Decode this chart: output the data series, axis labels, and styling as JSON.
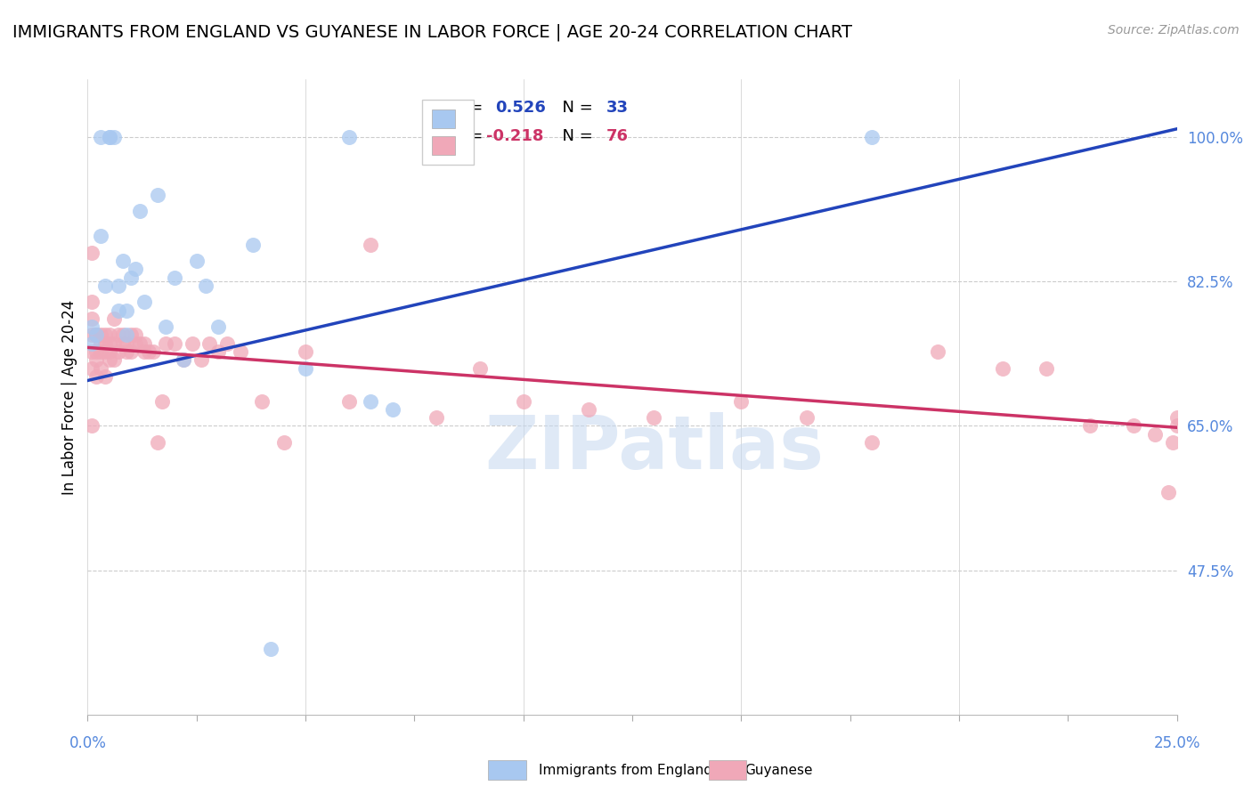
{
  "title": "IMMIGRANTS FROM ENGLAND VS GUYANESE IN LABOR FORCE | AGE 20-24 CORRELATION CHART",
  "source": "Source: ZipAtlas.com",
  "ylabel": "In Labor Force | Age 20-24",
  "xlim": [
    0.0,
    0.25
  ],
  "ylim": [
    0.3,
    1.07
  ],
  "ytick_vals": [
    0.475,
    0.65,
    0.825,
    1.0
  ],
  "ytick_labels": [
    "47.5%",
    "65.0%",
    "82.5%",
    "100.0%"
  ],
  "watermark": "ZIPatlas",
  "blue_color": "#a8c8f0",
  "pink_color": "#f0a8b8",
  "blue_line_color": "#2244bb",
  "pink_line_color": "#cc3366",
  "tick_color": "#5588dd",
  "title_fontsize": 14,
  "source_fontsize": 10,
  "ylabel_fontsize": 12,
  "tick_fontsize": 12,
  "legend_fontsize": 13,
  "blue_scatter_x": [
    0.001,
    0.001,
    0.002,
    0.003,
    0.003,
    0.004,
    0.005,
    0.005,
    0.006,
    0.007,
    0.007,
    0.008,
    0.009,
    0.009,
    0.01,
    0.011,
    0.012,
    0.013,
    0.016,
    0.018,
    0.02,
    0.022,
    0.025,
    0.027,
    0.03,
    0.038,
    0.042,
    0.05,
    0.06,
    0.065,
    0.07,
    0.08,
    0.18
  ],
  "blue_scatter_y": [
    0.75,
    0.77,
    0.76,
    1.0,
    0.88,
    0.82,
    1.0,
    1.0,
    1.0,
    0.79,
    0.82,
    0.85,
    0.79,
    0.76,
    0.83,
    0.84,
    0.91,
    0.8,
    0.93,
    0.77,
    0.83,
    0.73,
    0.85,
    0.82,
    0.77,
    0.87,
    0.38,
    0.72,
    1.0,
    0.68,
    0.67,
    1.0,
    1.0
  ],
  "pink_scatter_x": [
    0.001,
    0.001,
    0.001,
    0.001,
    0.001,
    0.001,
    0.001,
    0.002,
    0.002,
    0.002,
    0.002,
    0.002,
    0.003,
    0.003,
    0.003,
    0.003,
    0.004,
    0.004,
    0.004,
    0.004,
    0.005,
    0.005,
    0.005,
    0.005,
    0.006,
    0.006,
    0.006,
    0.007,
    0.007,
    0.008,
    0.008,
    0.009,
    0.009,
    0.01,
    0.01,
    0.011,
    0.011,
    0.012,
    0.013,
    0.013,
    0.014,
    0.015,
    0.016,
    0.017,
    0.018,
    0.02,
    0.022,
    0.024,
    0.026,
    0.028,
    0.03,
    0.032,
    0.035,
    0.04,
    0.045,
    0.05,
    0.06,
    0.065,
    0.08,
    0.09,
    0.1,
    0.115,
    0.13,
    0.15,
    0.165,
    0.18,
    0.195,
    0.21,
    0.22,
    0.23,
    0.24,
    0.245,
    0.248,
    0.249,
    0.25,
    0.25
  ],
  "pink_scatter_y": [
    0.76,
    0.74,
    0.72,
    0.78,
    0.86,
    0.8,
    0.65,
    0.74,
    0.76,
    0.73,
    0.71,
    0.76,
    0.75,
    0.74,
    0.76,
    0.72,
    0.76,
    0.75,
    0.74,
    0.71,
    0.76,
    0.74,
    0.75,
    0.73,
    0.78,
    0.75,
    0.73,
    0.76,
    0.74,
    0.76,
    0.75,
    0.75,
    0.74,
    0.76,
    0.74,
    0.76,
    0.75,
    0.75,
    0.75,
    0.74,
    0.74,
    0.74,
    0.63,
    0.68,
    0.75,
    0.75,
    0.73,
    0.75,
    0.73,
    0.75,
    0.74,
    0.75,
    0.74,
    0.68,
    0.63,
    0.74,
    0.68,
    0.87,
    0.66,
    0.72,
    0.68,
    0.67,
    0.66,
    0.68,
    0.66,
    0.63,
    0.74,
    0.72,
    0.72,
    0.65,
    0.65,
    0.64,
    0.57,
    0.63,
    0.65,
    0.66
  ],
  "blue_line_x0": 0.0,
  "blue_line_x1": 0.25,
  "blue_line_y0": 0.705,
  "blue_line_y1": 1.01,
  "pink_line_x0": 0.0,
  "pink_line_x1": 0.25,
  "pink_line_y0": 0.745,
  "pink_line_y1": 0.648
}
